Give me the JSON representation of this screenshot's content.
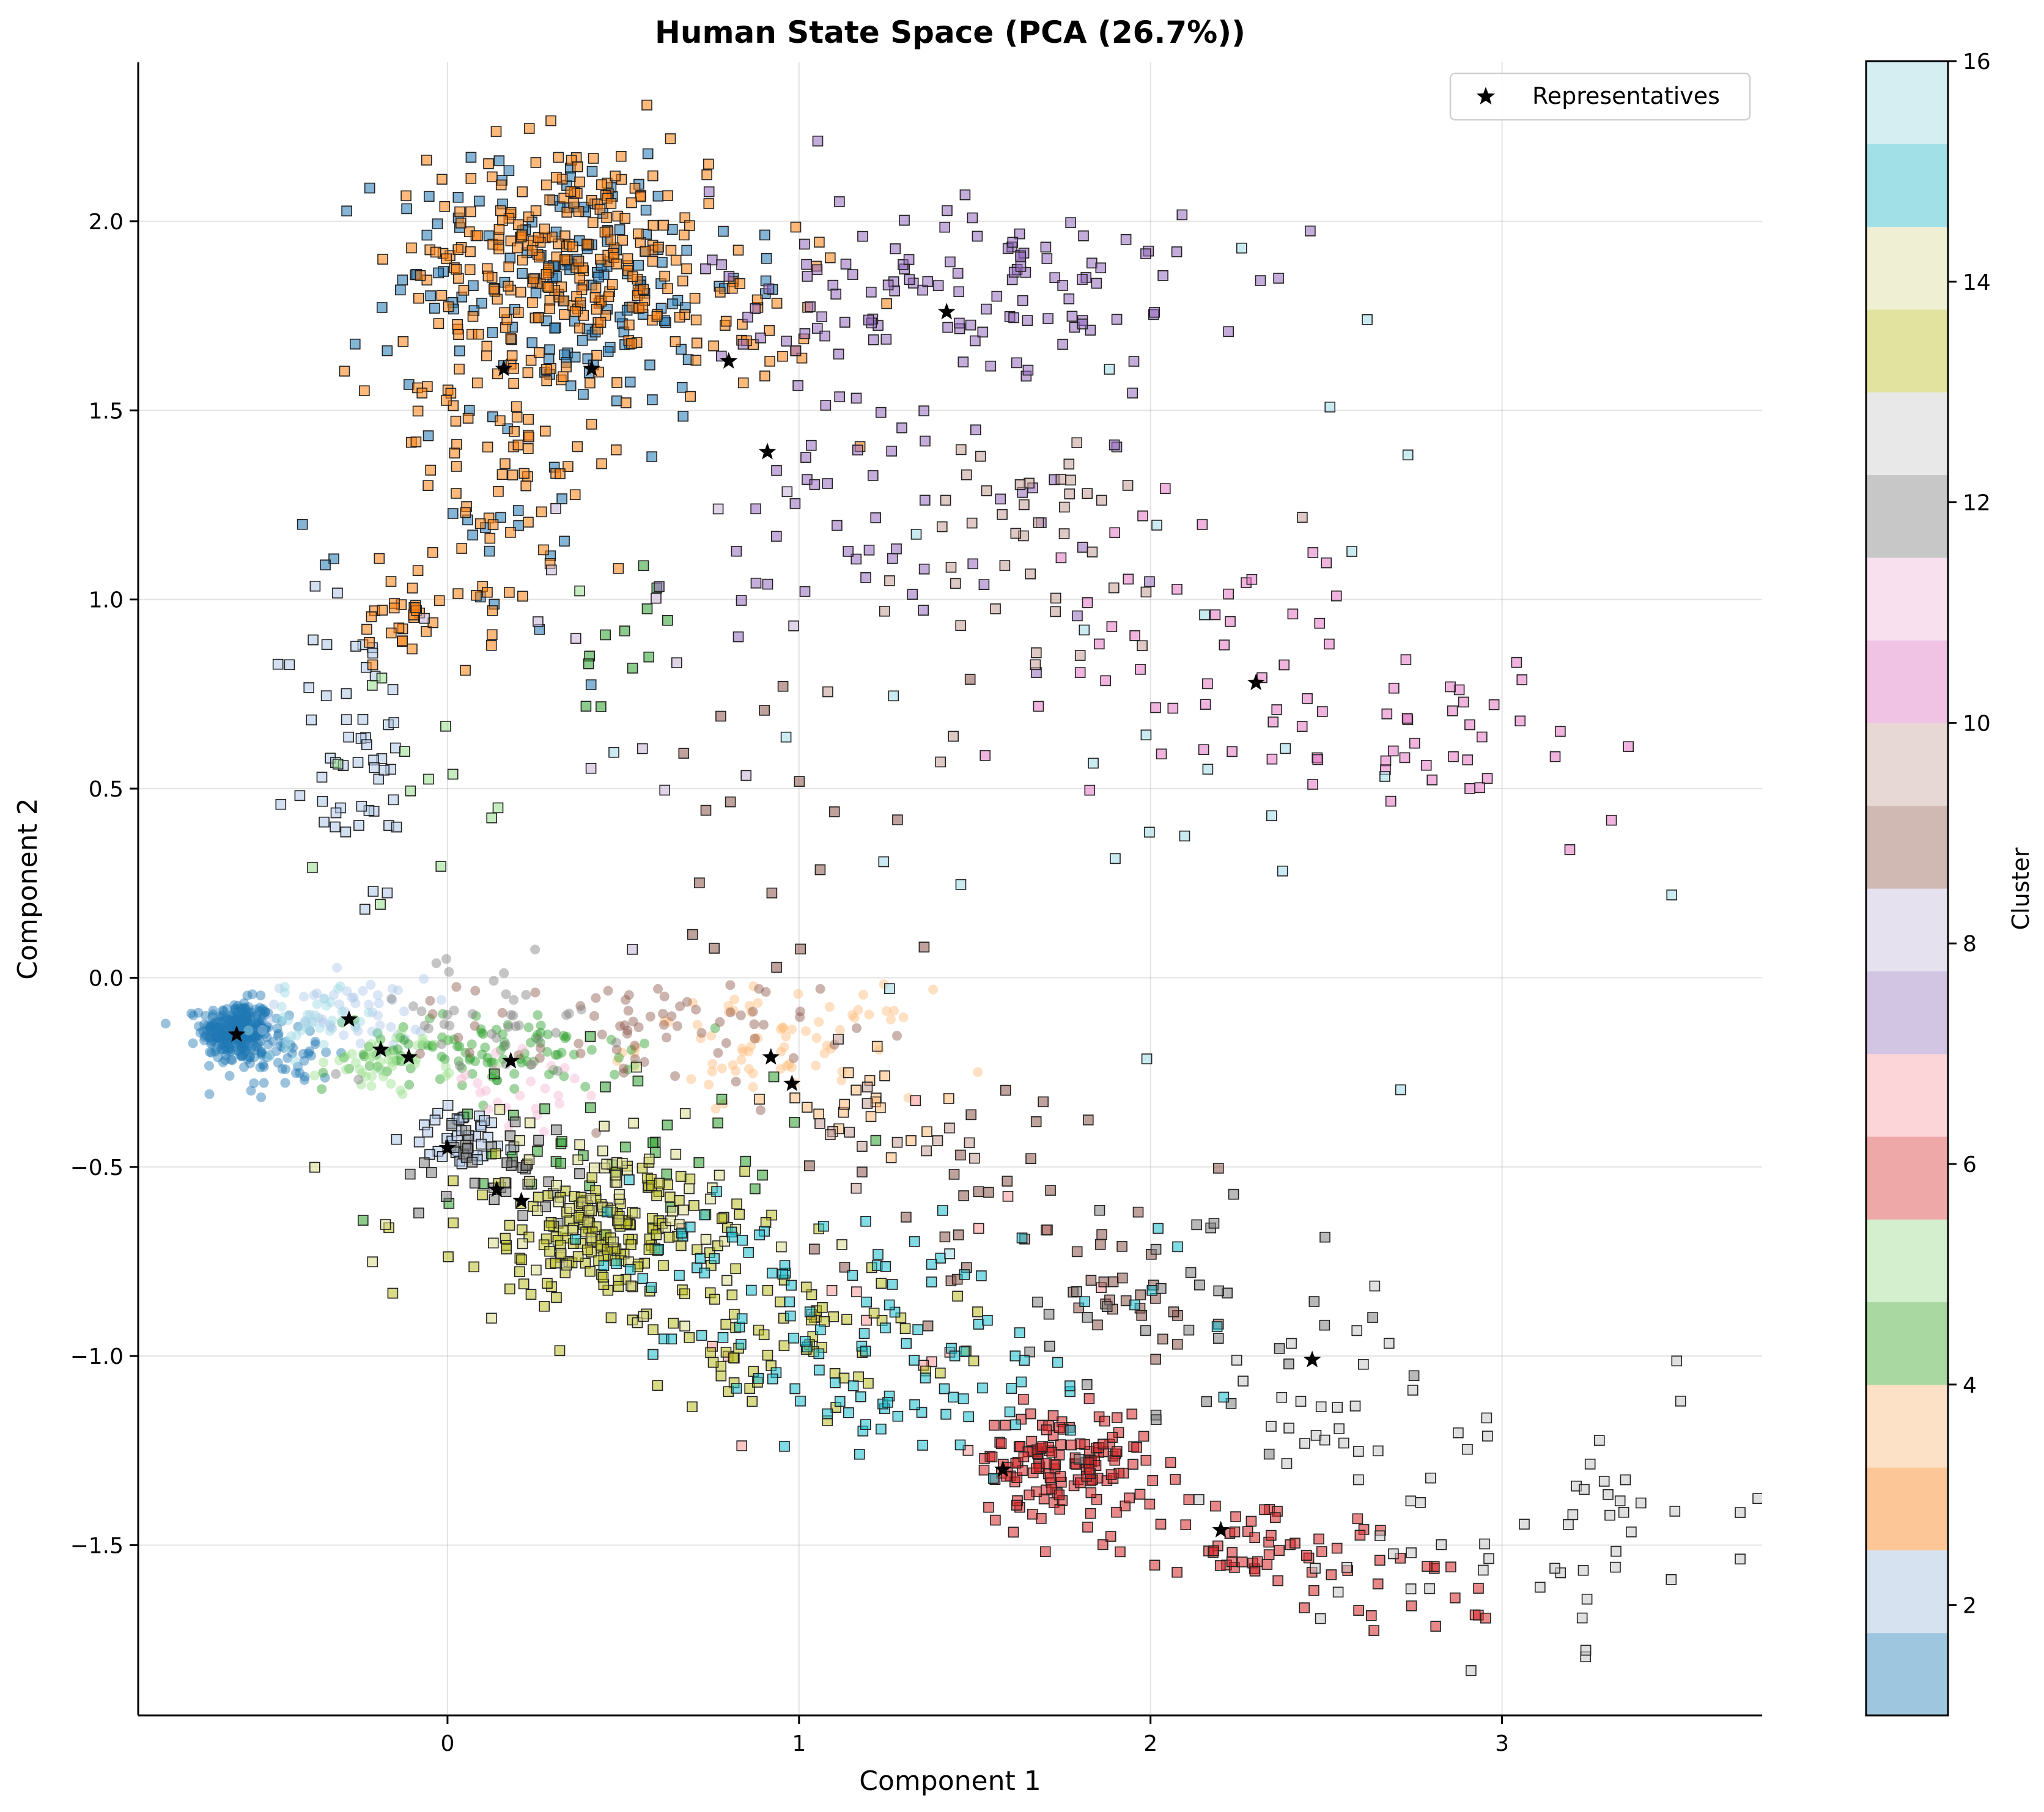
{
  "chart_data": {
    "type": "scatter",
    "title": "Human State Space (PCA (26.7%))",
    "xlabel": "Component 1",
    "ylabel": "Component 2",
    "xlim": [
      -0.88,
      3.74
    ],
    "ylim": [
      -1.95,
      2.42
    ],
    "xticks": [
      0,
      1,
      2,
      3
    ],
    "xtick_labels": [
      "0",
      "1",
      "2",
      "3"
    ],
    "yticks": [
      -1.5,
      -1.0,
      -0.5,
      0.0,
      0.5,
      1.0,
      1.5,
      2.0
    ],
    "ytick_labels": [
      "−1.5",
      "−1.0",
      "−0.5",
      "0.0",
      "0.5",
      "1.0",
      "1.5",
      "2.0"
    ],
    "grid": true,
    "legend": {
      "placement": "top-right",
      "entries": [
        {
          "label": "Representatives",
          "marker": "star",
          "color": "#000000"
        }
      ]
    },
    "colorbar": {
      "label": "Cluster",
      "range": [
        1,
        16
      ],
      "ticks": [
        2,
        4,
        6,
        8,
        10,
        12,
        14,
        16
      ],
      "tick_labels": [
        "2",
        "4",
        "6",
        "8",
        "10",
        "12",
        "14",
        "16"
      ],
      "colormap": "tab20",
      "colors": [
        "#9fc6df",
        "#d6e2ef",
        "#fcc696",
        "#fde1c6",
        "#a9d9a0",
        "#d3efcd",
        "#efa8a8",
        "#fbd5d7",
        "#d2c5e4",
        "#e6e1ef",
        "#d0b9b3",
        "#e7d7d5",
        "#f0c3e4",
        "#f9e0ef",
        "#c7c7c7",
        "#e8e8e8",
        "#e3e3a0",
        "#efefd4",
        "#a2e0e8",
        "#d5eef2"
      ]
    },
    "marker_styles": {
      "model_states": "circle (no edge)",
      "human_states": "square (black edge)",
      "representatives": "black star"
    },
    "representatives": [
      {
        "x": -0.6,
        "y": -0.15
      },
      {
        "x": -0.28,
        "y": -0.11
      },
      {
        "x": -0.19,
        "y": -0.19
      },
      {
        "x": -0.11,
        "y": -0.21
      },
      {
        "x": 0.18,
        "y": -0.22
      },
      {
        "x": 0.92,
        "y": -0.21
      },
      {
        "x": 0.98,
        "y": -0.28
      },
      {
        "x": 0.0,
        "y": -0.45
      },
      {
        "x": 0.14,
        "y": -0.56
      },
      {
        "x": 0.21,
        "y": -0.59
      },
      {
        "x": 0.16,
        "y": 1.61
      },
      {
        "x": 0.41,
        "y": 1.61
      },
      {
        "x": 0.8,
        "y": 1.63
      },
      {
        "x": 0.91,
        "y": 1.39
      },
      {
        "x": 1.42,
        "y": 1.76
      },
      {
        "x": 2.3,
        "y": 0.78
      },
      {
        "x": 1.58,
        "y": -1.3
      },
      {
        "x": 2.2,
        "y": -1.46
      },
      {
        "x": 2.46,
        "y": -1.01
      }
    ],
    "clusters": [
      {
        "cluster": 1,
        "color": "#1f77b4",
        "marker": "circle",
        "center": [
          -0.6,
          -0.14
        ],
        "spread": [
          0.05,
          0.04
        ],
        "count": 280
      },
      {
        "cluster": 1,
        "color": "#1f77b4",
        "marker": "circle",
        "center": [
          -0.47,
          -0.2
        ],
        "spread": [
          0.08,
          0.05
        ],
        "count": 60
      },
      {
        "cluster": 1,
        "color": "#1f77b4",
        "marker": "square",
        "center": [
          0.35,
          1.85
        ],
        "spread": [
          0.25,
          0.18
        ],
        "count": 170
      },
      {
        "cluster": 1,
        "color": "#1f77b4",
        "marker": "square",
        "center": [
          0.15,
          1.15
        ],
        "spread": [
          0.18,
          0.2
        ],
        "count": 22
      },
      {
        "cluster": 2,
        "color": "#aec7e8",
        "marker": "circle",
        "center": [
          -0.3,
          -0.1
        ],
        "spread": [
          0.12,
          0.05
        ],
        "count": 55
      },
      {
        "cluster": 2,
        "color": "#aec7e8",
        "marker": "square",
        "center": [
          -0.27,
          0.58
        ],
        "spread": [
          0.09,
          0.22
        ],
        "count": 55
      },
      {
        "cluster": 2,
        "color": "#aec7e8",
        "marker": "square",
        "center": [
          0.05,
          -0.42
        ],
        "spread": [
          0.08,
          0.04
        ],
        "count": 40
      },
      {
        "cluster": 3,
        "color": "#ff7f0e",
        "marker": "square",
        "center": [
          0.35,
          1.92
        ],
        "spread": [
          0.2,
          0.15
        ],
        "count": 240
      },
      {
        "cluster": 3,
        "color": "#ff7f0e",
        "marker": "square",
        "center": [
          0.12,
          1.4
        ],
        "spread": [
          0.16,
          0.25
        ],
        "count": 90
      },
      {
        "cluster": 3,
        "color": "#ff7f0e",
        "marker": "square",
        "center": [
          -0.13,
          0.95
        ],
        "spread": [
          0.06,
          0.07
        ],
        "count": 28
      },
      {
        "cluster": 3,
        "color": "#ff7f0e",
        "marker": "square",
        "center": [
          0.8,
          1.75
        ],
        "spread": [
          0.18,
          0.12
        ],
        "count": 45
      },
      {
        "cluster": 4,
        "color": "#ffbb78",
        "marker": "circle",
        "center": [
          0.95,
          -0.17
        ],
        "spread": [
          0.2,
          0.07
        ],
        "count": 75
      },
      {
        "cluster": 4,
        "color": "#ffbb78",
        "marker": "square",
        "center": [
          1.15,
          -0.34
        ],
        "spread": [
          0.12,
          0.06
        ],
        "count": 20
      },
      {
        "cluster": 5,
        "color": "#2ca02c",
        "marker": "circle",
        "center": [
          0.1,
          -0.2
        ],
        "spread": [
          0.22,
          0.05
        ],
        "count": 110
      },
      {
        "cluster": 5,
        "color": "#2ca02c",
        "marker": "square",
        "center": [
          0.5,
          -0.42
        ],
        "spread": [
          0.25,
          0.12
        ],
        "count": 40
      },
      {
        "cluster": 5,
        "color": "#2ca02c",
        "marker": "square",
        "center": [
          0.5,
          0.85
        ],
        "spread": [
          0.1,
          0.1
        ],
        "count": 12
      },
      {
        "cluster": 6,
        "color": "#98df8a",
        "marker": "circle",
        "center": [
          -0.15,
          -0.22
        ],
        "spread": [
          0.1,
          0.04
        ],
        "count": 45
      },
      {
        "cluster": 6,
        "color": "#98df8a",
        "marker": "square",
        "center": [
          0.0,
          0.4
        ],
        "spread": [
          0.25,
          0.25
        ],
        "count": 14
      },
      {
        "cluster": 7,
        "color": "#d62728",
        "marker": "square",
        "center": [
          1.75,
          -1.28
        ],
        "spread": [
          0.12,
          0.07
        ],
        "count": 140
      },
      {
        "cluster": 7,
        "color": "#d62728",
        "marker": "square",
        "center": [
          2.3,
          -1.5
        ],
        "spread": [
          0.2,
          0.07
        ],
        "count": 60
      },
      {
        "cluster": 7,
        "color": "#d62728",
        "marker": "square",
        "center": [
          2.7,
          -1.6
        ],
        "spread": [
          0.18,
          0.08
        ],
        "count": 15
      },
      {
        "cluster": 8,
        "color": "#ff9896",
        "marker": "square",
        "center": [
          1.3,
          -0.9
        ],
        "spread": [
          0.35,
          0.2
        ],
        "count": 18
      },
      {
        "cluster": 9,
        "color": "#9467bd",
        "marker": "square",
        "center": [
          1.45,
          1.8
        ],
        "spread": [
          0.35,
          0.15
        ],
        "count": 130
      },
      {
        "cluster": 9,
        "color": "#9467bd",
        "marker": "square",
        "center": [
          1.3,
          1.2
        ],
        "spread": [
          0.3,
          0.2
        ],
        "count": 45
      },
      {
        "cluster": 10,
        "color": "#c5b0d5",
        "marker": "square",
        "center": [
          0.5,
          0.8
        ],
        "spread": [
          0.3,
          0.25
        ],
        "count": 15
      },
      {
        "cluster": 11,
        "color": "#8c564b",
        "marker": "circle",
        "center": [
          0.55,
          -0.14
        ],
        "spread": [
          0.25,
          0.07
        ],
        "count": 70
      },
      {
        "cluster": 11,
        "color": "#8c564b",
        "marker": "square",
        "center": [
          1.6,
          -0.55
        ],
        "spread": [
          0.3,
          0.15
        ],
        "count": 30
      },
      {
        "cluster": 11,
        "color": "#8c564b",
        "marker": "square",
        "center": [
          1.0,
          0.5
        ],
        "spread": [
          0.2,
          0.25
        ],
        "count": 18
      },
      {
        "cluster": 11,
        "color": "#8c564b",
        "marker": "square",
        "center": [
          1.9,
          -0.85
        ],
        "spread": [
          0.15,
          0.1
        ],
        "count": 25
      },
      {
        "cluster": 12,
        "color": "#c49c94",
        "marker": "square",
        "center": [
          1.6,
          1.1
        ],
        "spread": [
          0.3,
          0.2
        ],
        "count": 45
      },
      {
        "cluster": 12,
        "color": "#c49c94",
        "marker": "square",
        "center": [
          1.2,
          -0.4
        ],
        "spread": [
          0.2,
          0.1
        ],
        "count": 15
      },
      {
        "cluster": 13,
        "color": "#e377c2",
        "marker": "square",
        "center": [
          2.2,
          0.9
        ],
        "spread": [
          0.25,
          0.18
        ],
        "count": 40
      },
      {
        "cluster": 13,
        "color": "#e377c2",
        "marker": "square",
        "center": [
          2.85,
          0.65
        ],
        "spread": [
          0.3,
          0.12
        ],
        "count": 40
      },
      {
        "cluster": 14,
        "color": "#f7b6d2",
        "marker": "circle",
        "center": [
          0.2,
          -0.3
        ],
        "spread": [
          0.15,
          0.07
        ],
        "count": 25
      },
      {
        "cluster": 15,
        "color": "#7f7f7f",
        "marker": "circle",
        "center": [
          0.1,
          -0.1
        ],
        "spread": [
          0.2,
          0.08
        ],
        "count": 40
      },
      {
        "cluster": 15,
        "color": "#7f7f7f",
        "marker": "square",
        "center": [
          2.1,
          -0.9
        ],
        "spread": [
          0.25,
          0.18
        ],
        "count": 35
      },
      {
        "cluster": 15,
        "color": "#7f7f7f",
        "marker": "square",
        "center": [
          0.15,
          -0.5
        ],
        "spread": [
          0.15,
          0.08
        ],
        "count": 40
      },
      {
        "cluster": 16,
        "color": "#c7c7c7",
        "marker": "square",
        "center": [
          3.1,
          -1.45
        ],
        "spread": [
          0.3,
          0.15
        ],
        "count": 55
      },
      {
        "cluster": 16,
        "color": "#c7c7c7",
        "marker": "square",
        "center": [
          2.5,
          -1.15
        ],
        "spread": [
          0.2,
          0.12
        ],
        "count": 25
      },
      {
        "cluster": 17,
        "color": "#bcbd22",
        "marker": "square",
        "center": [
          0.45,
          -0.68
        ],
        "spread": [
          0.2,
          0.09
        ],
        "count": 180
      },
      {
        "cluster": 17,
        "color": "#bcbd22",
        "marker": "square",
        "center": [
          0.95,
          -0.95
        ],
        "spread": [
          0.25,
          0.09
        ],
        "count": 70
      },
      {
        "cluster": 18,
        "color": "#dbdb8d",
        "marker": "square",
        "center": [
          0.45,
          -0.62
        ],
        "spread": [
          0.3,
          0.15
        ],
        "count": 70
      },
      {
        "cluster": 19,
        "color": "#17becf",
        "marker": "square",
        "center": [
          1.35,
          -1.0
        ],
        "spread": [
          0.35,
          0.15
        ],
        "count": 90
      },
      {
        "cluster": 19,
        "color": "#17becf",
        "marker": "square",
        "center": [
          0.75,
          -0.75
        ],
        "spread": [
          0.2,
          0.1
        ],
        "count": 40
      },
      {
        "cluster": 20,
        "color": "#9edae5",
        "marker": "circle",
        "center": [
          -0.38,
          -0.12
        ],
        "spread": [
          0.08,
          0.04
        ],
        "count": 35
      },
      {
        "cluster": 20,
        "color": "#9edae5",
        "marker": "square",
        "center": [
          2.0,
          0.6
        ],
        "spread": [
          0.7,
          0.5
        ],
        "count": 30
      }
    ]
  }
}
